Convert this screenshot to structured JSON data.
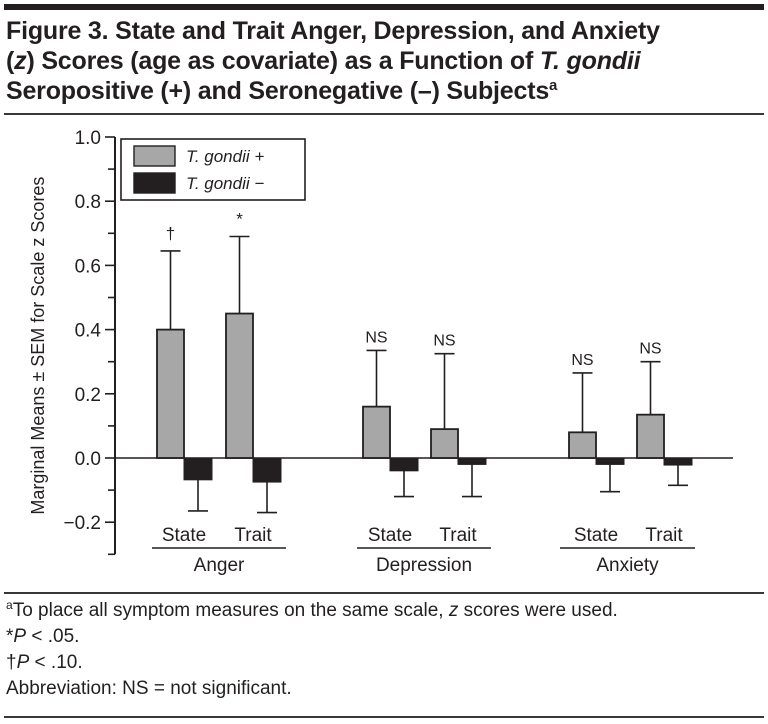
{
  "title": {
    "prefix": "Figure 3. State and Trait Anger, Depression, and Anxiety",
    "line2_open": "(",
    "line2_z": "z",
    "line2_mid": ") Scores (age as covariate) as a Function of ",
    "line2_species": "T. gondii",
    "line3": "Seropositive (+) and Seronegative (–) Subjects",
    "footnote_mark": "a"
  },
  "footnotes": {
    "a_mark": "a",
    "a_text_1": "To place all symptom measures on the same scale, ",
    "a_text_z": "z",
    "a_text_2": " scores were used.",
    "star_mark": "*",
    "star_p": "P",
    "star_text": " < .05.",
    "dagger_mark": "†",
    "dagger_p": "P",
    "dagger_text": " < .10.",
    "abbrev": "Abbreviation: NS = not significant."
  },
  "chart_data": {
    "type": "bar",
    "title": "State and Trait Anger, Depression, and Anxiety (z) Scores (age as covariate) as a Function of T. gondii Seropositive (+) and Seronegative (–) Subjects",
    "xlabel": "",
    "ylabel": "Marginal Means ± SEM for Scale z Scores",
    "ylim": [
      -0.3,
      1.0
    ],
    "yticks": [
      -0.2,
      0.0,
      0.2,
      0.4,
      0.6,
      0.8,
      1.0
    ],
    "ytick_labels": [
      "−0.2",
      "0.0",
      "0.2",
      "0.4",
      "0.6",
      "0.8",
      "1.0"
    ],
    "minor_tick_step": 0.1,
    "grid": false,
    "legend_position": "top-left",
    "groups": [
      {
        "label": "Anger",
        "categories": [
          "State",
          "Trait"
        ]
      },
      {
        "label": "Depression",
        "categories": [
          "State",
          "Trait"
        ]
      },
      {
        "label": "Anxiety",
        "categories": [
          "State",
          "Trait"
        ]
      }
    ],
    "categories": [
      "Anger State",
      "Anger Trait",
      "Depression State",
      "Depression Trait",
      "Anxiety State",
      "Anxiety Trait"
    ],
    "series": [
      {
        "name": "T. gondii +",
        "color": "#a7a7a7",
        "values": [
          0.4,
          0.45,
          0.16,
          0.09,
          0.08,
          0.135
        ],
        "sem": [
          0.245,
          0.24,
          0.175,
          0.235,
          0.185,
          0.165
        ],
        "annotations": [
          "†",
          "*",
          "NS",
          "NS",
          "NS",
          "NS"
        ]
      },
      {
        "name": "T. gondii −",
        "color": "#231f20",
        "values": [
          -0.068,
          -0.075,
          -0.04,
          -0.02,
          -0.02,
          -0.022
        ],
        "sem": [
          0.097,
          0.095,
          0.08,
          0.1,
          0.085,
          0.063
        ]
      }
    ]
  }
}
